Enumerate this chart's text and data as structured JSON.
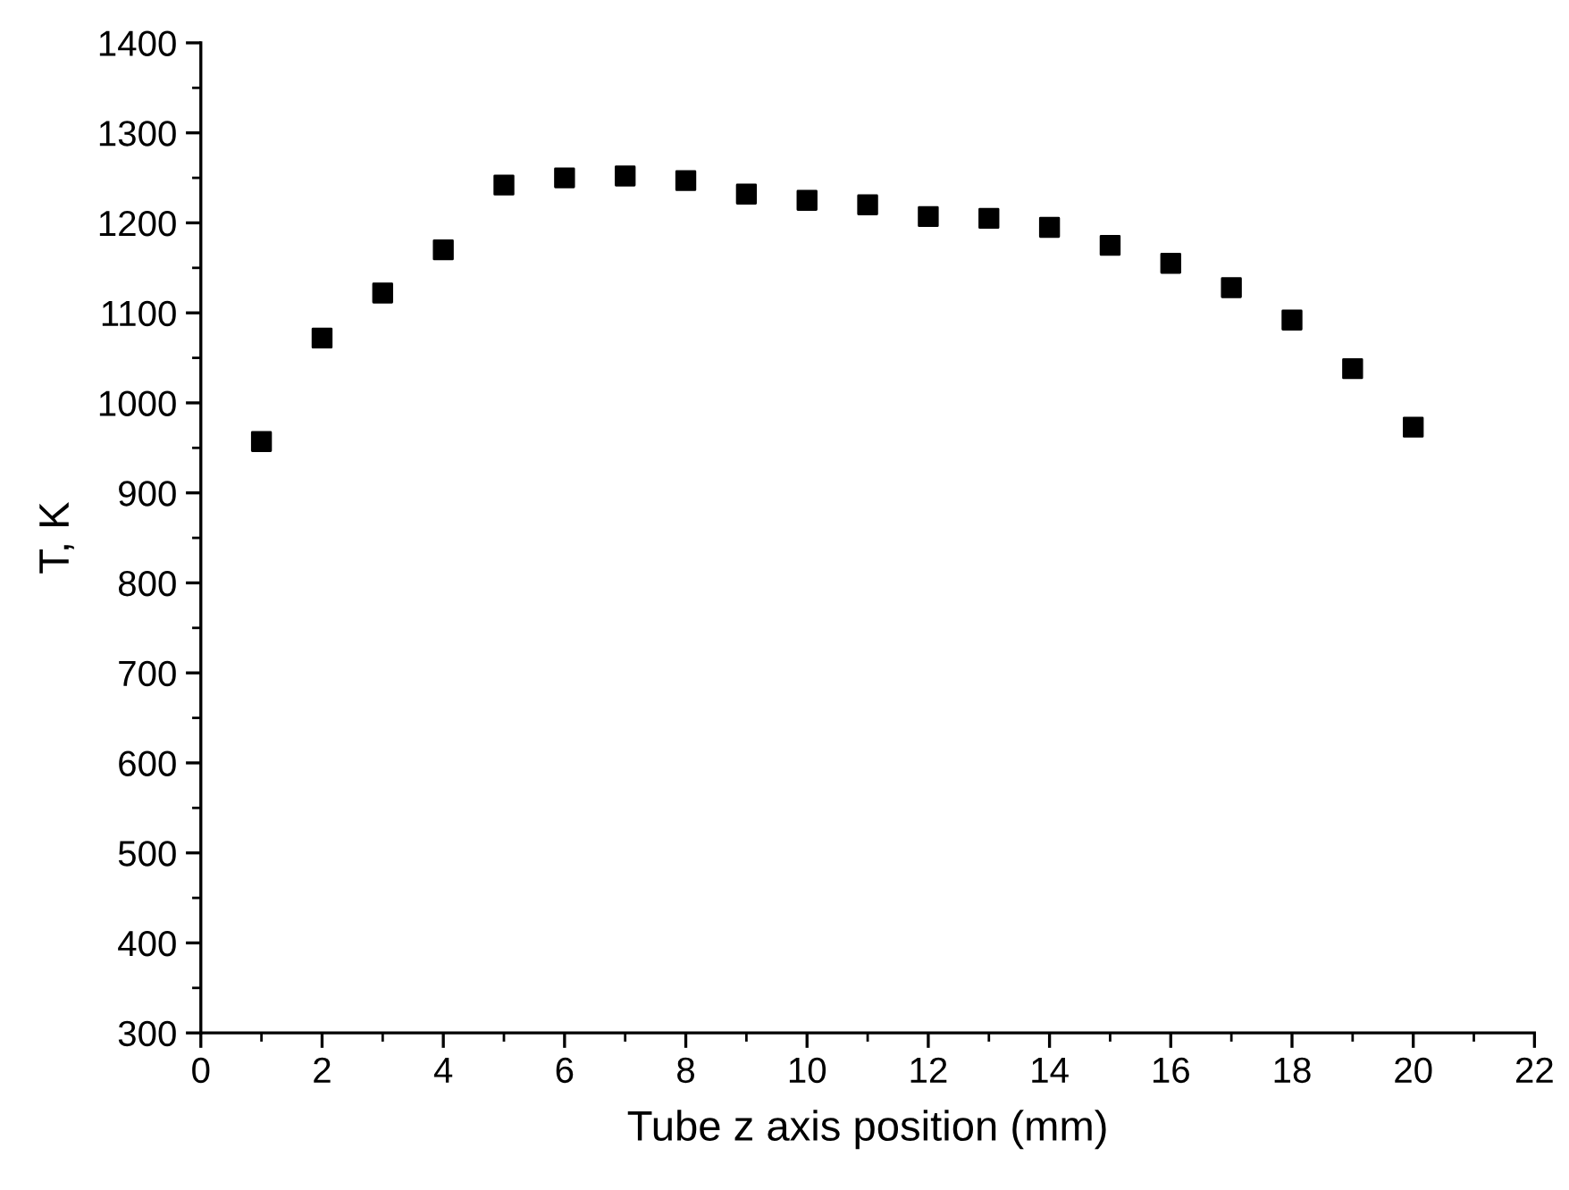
{
  "chart_data": {
    "type": "scatter",
    "xlabel": "Tube z axis position (mm)",
    "ylabel": "T, K",
    "x": [
      1,
      2,
      3,
      4,
      5,
      6,
      7,
      8,
      9,
      10,
      11,
      12,
      13,
      14,
      15,
      16,
      17,
      18,
      19,
      20
    ],
    "series": [
      {
        "color": "#000000",
        "values": [
          957,
          1072,
          1122,
          1170,
          1242,
          1250,
          1252,
          1247,
          1232,
          1225,
          1220,
          1207,
          1205,
          1195,
          1175,
          1155,
          1128,
          1092,
          1038,
          973
        ]
      }
    ],
    "marker": "square",
    "xlim": [
      0,
      22
    ],
    "xticks": [
      0,
      2,
      4,
      6,
      8,
      10,
      12,
      14,
      16,
      18,
      20,
      22
    ],
    "ylim": [
      300,
      1400
    ],
    "yticks": [
      300,
      400,
      500,
      600,
      700,
      800,
      900,
      1000,
      1100,
      1200,
      1300,
      1400
    ],
    "grid": false,
    "legend": false
  }
}
